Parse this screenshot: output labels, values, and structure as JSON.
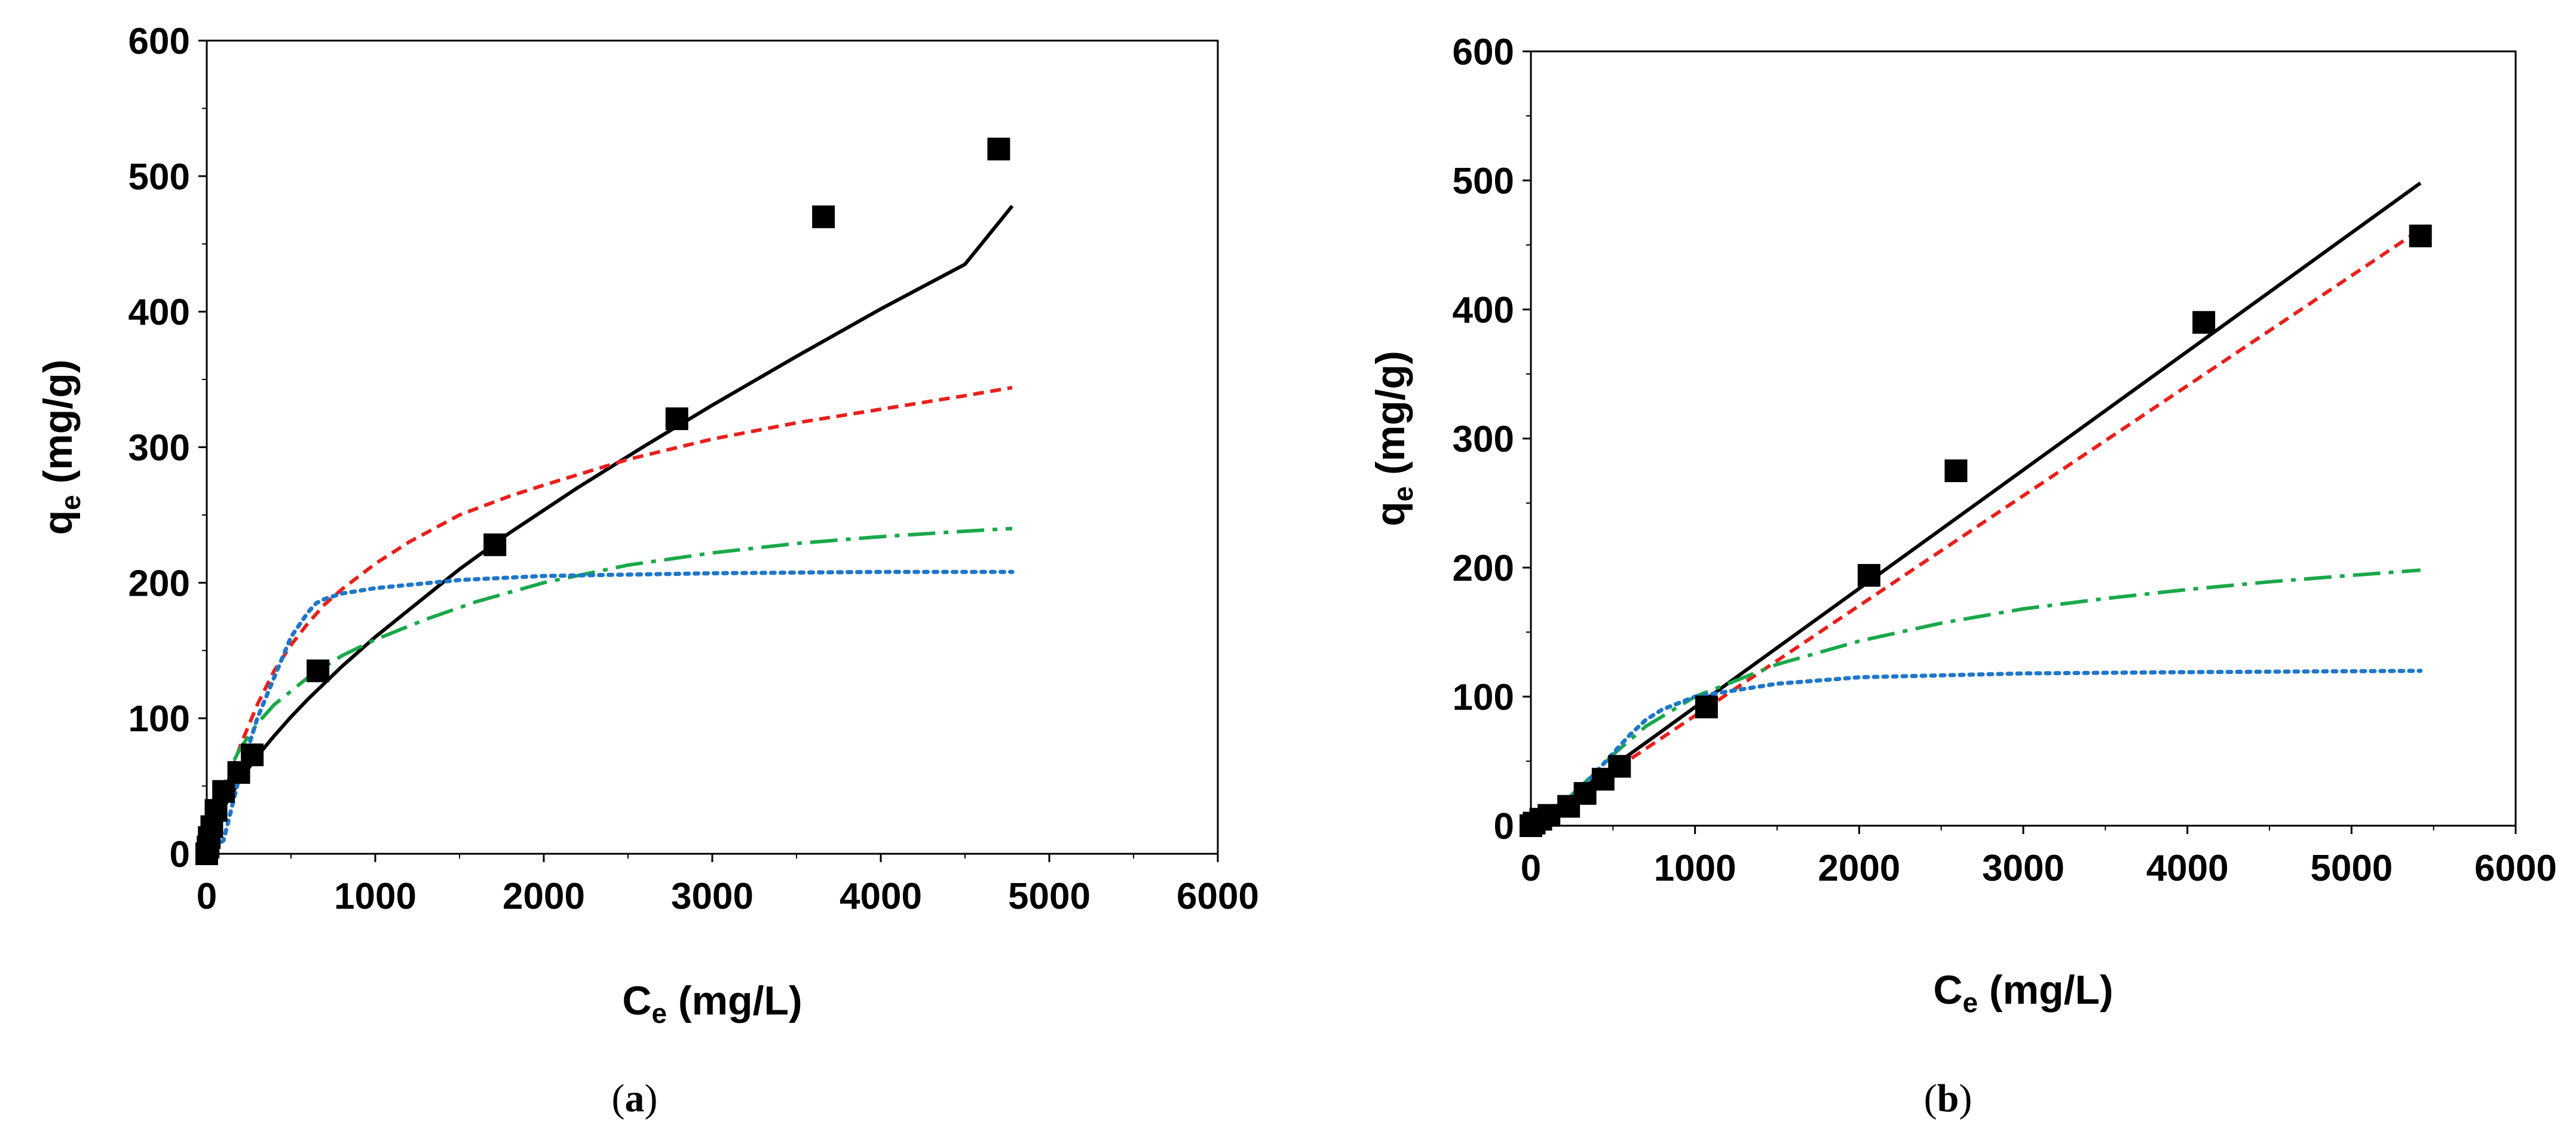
{
  "chart_data": [
    {
      "type": "scatter",
      "panel_label": "a",
      "title": "",
      "xlabel": {
        "main": "C",
        "sub": "e",
        "unit": " (mg/L)"
      },
      "ylabel": {
        "main": "q",
        "sub": "e",
        "unit": " (mg/g)"
      },
      "xlim": [
        0,
        6000
      ],
      "ylim": [
        0,
        600
      ],
      "xticks": [
        0,
        1000,
        2000,
        3000,
        4000,
        5000,
        6000
      ],
      "yticks": [
        0,
        100,
        200,
        300,
        400,
        500,
        600
      ],
      "grid": false,
      "legend": "none",
      "points": [
        {
          "x": 0,
          "y": 0
        },
        {
          "x": 8,
          "y": 5
        },
        {
          "x": 15,
          "y": 12
        },
        {
          "x": 30,
          "y": 20
        },
        {
          "x": 55,
          "y": 32
        },
        {
          "x": 100,
          "y": 46
        },
        {
          "x": 190,
          "y": 60
        },
        {
          "x": 270,
          "y": 73
        },
        {
          "x": 660,
          "y": 135
        },
        {
          "x": 1710,
          "y": 228
        },
        {
          "x": 2790,
          "y": 321
        },
        {
          "x": 3660,
          "y": 470
        },
        {
          "x": 4700,
          "y": 520
        }
      ],
      "series": [
        {
          "name": "black-solid",
          "color": "#000000",
          "dash": "",
          "x": [
            0,
            50,
            100,
            200,
            300,
            400,
            500,
            600,
            800,
            1000,
            1200,
            1500,
            1800,
            2200,
            2600,
            3000,
            3500,
            4000,
            4500,
            4780
          ],
          "y": [
            0,
            22,
            34,
            55,
            72,
            87,
            101,
            114,
            138,
            160,
            180,
            210,
            237,
            270,
            301,
            331,
            367,
            402,
            435,
            478
          ]
        },
        {
          "name": "red-dashed",
          "color": "#e8201c",
          "dash": "18,11",
          "x": [
            0,
            100,
            200,
            300,
            400,
            500,
            600,
            700,
            800,
            1000,
            1200,
            1500,
            1800,
            2000,
            2500,
            3000,
            3500,
            4000,
            4500,
            4780
          ],
          "y": [
            0,
            44,
            80,
            110,
            135,
            154,
            170,
            184,
            195,
            214,
            230,
            250,
            264,
            272,
            291,
            306,
            318,
            328,
            338,
            344
          ]
        },
        {
          "name": "green-dash-dot",
          "color": "#1aa84a",
          "dash": "46,14,8,14",
          "x": [
            0,
            50,
            100,
            150,
            200,
            300,
            400,
            600,
            800,
            1000,
            1300,
            1600,
            2000,
            2500,
            3000,
            3500,
            4000,
            4500,
            4780
          ],
          "y": [
            0,
            30,
            50,
            66,
            78,
            96,
            110,
            130,
            146,
            158,
            173,
            186,
            200,
            213,
            222,
            229,
            234,
            238,
            240
          ]
        },
        {
          "name": "blue-dotted",
          "color": "#1f77c9",
          "dash": "6,10",
          "x": [
            0,
            100,
            200,
            300,
            400,
            500,
            600,
            650,
            700,
            800,
            1000,
            1500,
            2000,
            3000,
            4000,
            4780
          ],
          "y": [
            0,
            10,
            60,
            100,
            130,
            160,
            178,
            185,
            188,
            192,
            196,
            202,
            205,
            207,
            208,
            208
          ]
        }
      ]
    },
    {
      "type": "scatter",
      "panel_label": "b",
      "title": "",
      "xlabel": {
        "main": "C",
        "sub": "e",
        "unit": " (mg/L)"
      },
      "ylabel": {
        "main": "q",
        "sub": "e",
        "unit": " (mg/g)"
      },
      "xlim": [
        0,
        6000
      ],
      "ylim": [
        0,
        600
      ],
      "xticks": [
        0,
        1000,
        2000,
        3000,
        4000,
        5000,
        6000
      ],
      "yticks": [
        0,
        100,
        200,
        300,
        400,
        500,
        600
      ],
      "grid": false,
      "legend": "none",
      "points": [
        {
          "x": 0,
          "y": 0
        },
        {
          "x": 20,
          "y": 2
        },
        {
          "x": 60,
          "y": 5
        },
        {
          "x": 110,
          "y": 8
        },
        {
          "x": 230,
          "y": 15
        },
        {
          "x": 330,
          "y": 25
        },
        {
          "x": 440,
          "y": 36
        },
        {
          "x": 540,
          "y": 46
        },
        {
          "x": 1070,
          "y": 92
        },
        {
          "x": 2060,
          "y": 194
        },
        {
          "x": 2590,
          "y": 275
        },
        {
          "x": 4100,
          "y": 390
        },
        {
          "x": 5420,
          "y": 457
        }
      ],
      "series": [
        {
          "name": "black-solid",
          "color": "#000000",
          "dash": "",
          "x": [
            0,
            5420
          ],
          "y": [
            0,
            498
          ]
        },
        {
          "name": "red-dashed",
          "color": "#e8201c",
          "dash": "18,11",
          "x": [
            0,
            5420
          ],
          "y": [
            0,
            462
          ]
        },
        {
          "name": "green-dash-dot",
          "color": "#1aa84a",
          "dash": "46,14,8,14",
          "x": [
            0,
            100,
            200,
            300,
            400,
            500,
            700,
            1000,
            1500,
            2000,
            2500,
            3000,
            3500,
            4000,
            4500,
            5000,
            5420
          ],
          "y": [
            0,
            8,
            18,
            30,
            42,
            55,
            77,
            100,
            125,
            143,
            157,
            168,
            176,
            183,
            189,
            194,
            198
          ]
        },
        {
          "name": "blue-dotted",
          "color": "#1f77c9",
          "dash": "6,10",
          "x": [
            0,
            100,
            200,
            300,
            400,
            500,
            600,
            700,
            800,
            1000,
            1500,
            2000,
            3000,
            4000,
            5420
          ],
          "y": [
            0,
            7,
            16,
            28,
            42,
            56,
            70,
            82,
            90,
            100,
            110,
            115,
            118,
            119,
            120
          ]
        }
      ]
    }
  ]
}
